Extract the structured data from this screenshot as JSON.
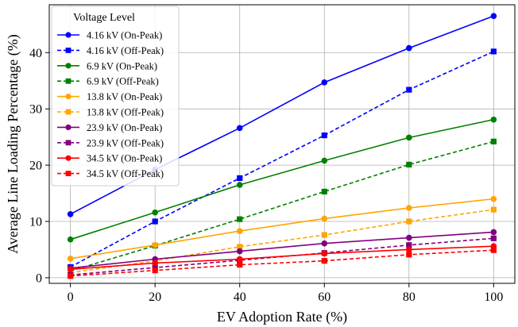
{
  "chart_data": {
    "type": "line",
    "title": "",
    "xlabel": "EV Adoption Rate (%)",
    "ylabel": "Average Line Loading Percentage (%)",
    "x": [
      0,
      20,
      40,
      60,
      80,
      100
    ],
    "xticks": [
      "0",
      "20",
      "40",
      "60",
      "80",
      "100"
    ],
    "yticks": [
      "0",
      "10",
      "20",
      "30",
      "40"
    ],
    "xlim": [
      -5,
      105
    ],
    "ylim": [
      -1,
      48.5
    ],
    "grid": true,
    "legend": {
      "title": "Voltage Level",
      "placement": "top-left"
    },
    "series": [
      {
        "name": "4.16 kV (On-Peak)",
        "color": "#0000ff",
        "dash": "solid",
        "marker": "circle",
        "values": [
          11.3,
          19.2,
          26.6,
          34.7,
          40.8,
          46.5
        ]
      },
      {
        "name": "4.16 kV (Off-Peak)",
        "color": "#0000ff",
        "dash": "dashed",
        "marker": "square",
        "values": [
          1.9,
          10.0,
          17.7,
          25.3,
          33.4,
          40.2
        ]
      },
      {
        "name": "6.9 kV (On-Peak)",
        "color": "#008000",
        "dash": "solid",
        "marker": "circle",
        "values": [
          6.8,
          11.6,
          16.5,
          20.8,
          24.9,
          28.1
        ]
      },
      {
        "name": "6.9 kV (Off-Peak)",
        "color": "#008000",
        "dash": "dashed",
        "marker": "square",
        "values": [
          1.2,
          5.7,
          10.4,
          15.3,
          20.1,
          24.2
        ]
      },
      {
        "name": "13.8 kV (On-Peak)",
        "color": "#ffa500",
        "dash": "solid",
        "marker": "circle",
        "values": [
          3.4,
          5.8,
          8.3,
          10.5,
          12.4,
          14.0
        ]
      },
      {
        "name": "13.8 kV (Off-Peak)",
        "color": "#ffa500",
        "dash": "dashed",
        "marker": "square",
        "values": [
          0.9,
          3.0,
          5.5,
          7.6,
          10.0,
          12.1
        ]
      },
      {
        "name": "23.9 kV (On-Peak)",
        "color": "#800080",
        "dash": "solid",
        "marker": "circle",
        "values": [
          1.7,
          3.3,
          4.7,
          6.1,
          7.1,
          8.1
        ]
      },
      {
        "name": "23.9 kV (Off-Peak)",
        "color": "#800080",
        "dash": "dashed",
        "marker": "square",
        "values": [
          0.5,
          1.8,
          3.1,
          4.4,
          5.8,
          7.0
        ]
      },
      {
        "name": "34.5 kV (On-Peak)",
        "color": "#ff0000",
        "dash": "solid",
        "marker": "circle",
        "values": [
          1.5,
          2.6,
          3.3,
          4.3,
          5.0,
          5.6
        ]
      },
      {
        "name": "34.5 kV (Off-Peak)",
        "color": "#ff0000",
        "dash": "dashed",
        "marker": "square",
        "values": [
          0.3,
          1.3,
          2.3,
          3.0,
          4.1,
          4.9
        ]
      }
    ]
  }
}
